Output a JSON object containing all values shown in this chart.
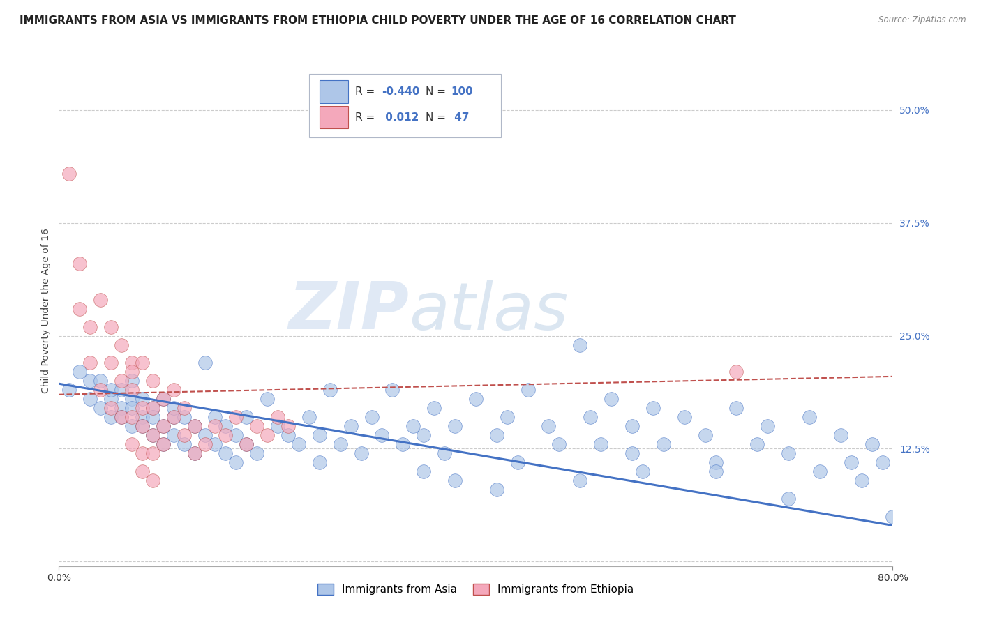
{
  "title": "IMMIGRANTS FROM ASIA VS IMMIGRANTS FROM ETHIOPIA CHILD POVERTY UNDER THE AGE OF 16 CORRELATION CHART",
  "source": "Source: ZipAtlas.com",
  "ylabel": "Child Poverty Under the Age of 16",
  "ytick_values": [
    0.0,
    0.125,
    0.25,
    0.375,
    0.5
  ],
  "ytick_labels": [
    "",
    "12.5%",
    "25.0%",
    "37.5%",
    "50.0%"
  ],
  "xlim": [
    0.0,
    0.8
  ],
  "ylim": [
    -0.005,
    0.56
  ],
  "watermark_zip": "ZIP",
  "watermark_atlas": "atlas",
  "legend_asia_R": "-0.440",
  "legend_asia_N": "100",
  "legend_ethiopia_R": "0.012",
  "legend_ethiopia_N": "47",
  "asia_color": "#aec6e8",
  "asia_edge_color": "#4472c4",
  "ethiopia_color": "#f4a8bb",
  "ethiopia_edge_color": "#c0504d",
  "asia_trend_color": "#4472c4",
  "ethiopia_trend_color": "#c0504d",
  "asia_scatter_x": [
    0.01,
    0.02,
    0.03,
    0.03,
    0.04,
    0.04,
    0.05,
    0.05,
    0.05,
    0.06,
    0.06,
    0.06,
    0.07,
    0.07,
    0.07,
    0.07,
    0.08,
    0.08,
    0.08,
    0.09,
    0.09,
    0.09,
    0.1,
    0.1,
    0.1,
    0.11,
    0.11,
    0.11,
    0.12,
    0.12,
    0.13,
    0.13,
    0.14,
    0.14,
    0.15,
    0.15,
    0.16,
    0.16,
    0.17,
    0.17,
    0.18,
    0.18,
    0.19,
    0.2,
    0.21,
    0.22,
    0.23,
    0.24,
    0.25,
    0.26,
    0.27,
    0.28,
    0.29,
    0.3,
    0.31,
    0.32,
    0.33,
    0.34,
    0.35,
    0.36,
    0.37,
    0.38,
    0.4,
    0.42,
    0.43,
    0.44,
    0.45,
    0.47,
    0.48,
    0.5,
    0.51,
    0.52,
    0.53,
    0.55,
    0.56,
    0.57,
    0.58,
    0.6,
    0.62,
    0.63,
    0.65,
    0.67,
    0.68,
    0.7,
    0.72,
    0.73,
    0.75,
    0.76,
    0.77,
    0.78,
    0.79,
    0.8,
    0.5,
    0.35,
    0.42,
    0.55,
    0.63,
    0.7,
    0.25,
    0.38
  ],
  "asia_scatter_y": [
    0.19,
    0.21,
    0.18,
    0.2,
    0.17,
    0.2,
    0.18,
    0.16,
    0.19,
    0.17,
    0.19,
    0.16,
    0.18,
    0.15,
    0.17,
    0.2,
    0.16,
    0.18,
    0.15,
    0.17,
    0.14,
    0.16,
    0.15,
    0.18,
    0.13,
    0.16,
    0.14,
    0.17,
    0.13,
    0.16,
    0.15,
    0.12,
    0.14,
    0.22,
    0.13,
    0.16,
    0.12,
    0.15,
    0.11,
    0.14,
    0.13,
    0.16,
    0.12,
    0.18,
    0.15,
    0.14,
    0.13,
    0.16,
    0.14,
    0.19,
    0.13,
    0.15,
    0.12,
    0.16,
    0.14,
    0.19,
    0.13,
    0.15,
    0.14,
    0.17,
    0.12,
    0.15,
    0.18,
    0.14,
    0.16,
    0.11,
    0.19,
    0.15,
    0.13,
    0.24,
    0.16,
    0.13,
    0.18,
    0.15,
    0.1,
    0.17,
    0.13,
    0.16,
    0.14,
    0.11,
    0.17,
    0.13,
    0.15,
    0.12,
    0.16,
    0.1,
    0.14,
    0.11,
    0.09,
    0.13,
    0.11,
    0.05,
    0.09,
    0.1,
    0.08,
    0.12,
    0.1,
    0.07,
    0.11,
    0.09
  ],
  "ethiopia_scatter_x": [
    0.01,
    0.02,
    0.02,
    0.03,
    0.03,
    0.04,
    0.04,
    0.05,
    0.05,
    0.05,
    0.06,
    0.06,
    0.06,
    0.07,
    0.07,
    0.07,
    0.07,
    0.08,
    0.08,
    0.08,
    0.08,
    0.09,
    0.09,
    0.09,
    0.09,
    0.1,
    0.1,
    0.1,
    0.11,
    0.11,
    0.12,
    0.12,
    0.13,
    0.13,
    0.14,
    0.15,
    0.16,
    0.17,
    0.18,
    0.19,
    0.2,
    0.21,
    0.22,
    0.09,
    0.07,
    0.08,
    0.65
  ],
  "ethiopia_scatter_y": [
    0.43,
    0.33,
    0.28,
    0.26,
    0.22,
    0.29,
    0.19,
    0.26,
    0.22,
    0.17,
    0.24,
    0.2,
    0.16,
    0.22,
    0.19,
    0.16,
    0.13,
    0.22,
    0.17,
    0.15,
    0.12,
    0.2,
    0.17,
    0.14,
    0.12,
    0.18,
    0.15,
    0.13,
    0.19,
    0.16,
    0.17,
    0.14,
    0.15,
    0.12,
    0.13,
    0.15,
    0.14,
    0.16,
    0.13,
    0.15,
    0.14,
    0.16,
    0.15,
    0.09,
    0.21,
    0.1,
    0.21
  ],
  "asia_trend_x0": 0.0,
  "asia_trend_x1": 0.8,
  "asia_trend_y0": 0.197,
  "asia_trend_y1": 0.04,
  "ethiopia_trend_x0": 0.0,
  "ethiopia_trend_x1": 0.8,
  "ethiopia_trend_y0": 0.185,
  "ethiopia_trend_y1": 0.205,
  "background_color": "#ffffff",
  "grid_color": "#cccccc",
  "title_fontsize": 11,
  "axis_label_fontsize": 10,
  "tick_fontsize": 10,
  "legend_label_asia": "Immigrants from Asia",
  "legend_label_ethiopia": "Immigrants from Ethiopia"
}
